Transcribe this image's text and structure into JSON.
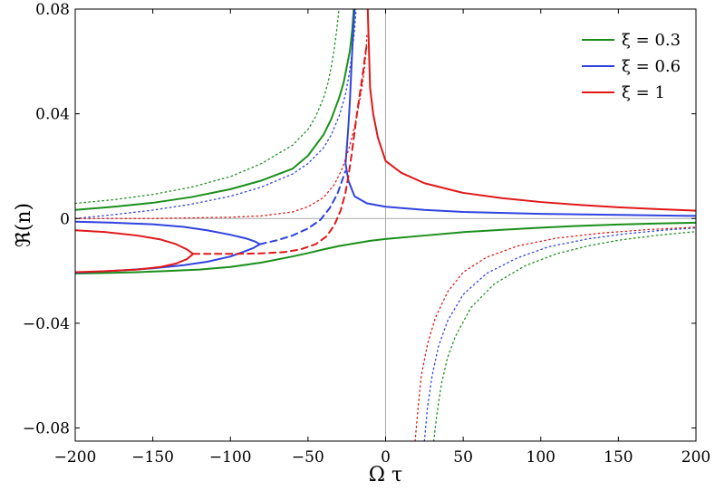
{
  "chart_data": {
    "type": "line",
    "title": "",
    "xlabel": "Ω τ",
    "ylabel": "ℜ(n)",
    "xlim": [
      -200,
      200
    ],
    "ylim": [
      -0.085,
      0.08
    ],
    "x_ticks": [
      -200,
      -150,
      -100,
      -50,
      0,
      50,
      100,
      150,
      200
    ],
    "x_tick_labels": [
      "−200",
      "−150",
      "−100",
      "−50",
      "0",
      "50",
      "100",
      "150",
      "200"
    ],
    "y_ticks": [
      -0.08,
      -0.04,
      0,
      0.04,
      0.08
    ],
    "y_tick_labels": [
      "−0.08",
      "−0.04",
      "0",
      "0.04",
      "0.08"
    ],
    "grid": false,
    "reference_lines": {
      "horizontal_y": 0,
      "vertical_x": 0,
      "color": "#aaaaaa"
    },
    "legend": {
      "position": "top-right",
      "entries": [
        {
          "label": "ξ = 0.3",
          "color": "#1a8f1a"
        },
        {
          "label": "ξ = 0.6",
          "color": "#2f43e0"
        },
        {
          "label": "ξ = 1",
          "color": "#e01818"
        }
      ]
    },
    "series": [
      {
        "legend_index": 0,
        "color": "#1a8f1a",
        "style": "solid",
        "points": [
          [
            -200,
            0.0033
          ],
          [
            -175,
            0.0045
          ],
          [
            -150,
            0.006
          ],
          [
            -125,
            0.0082
          ],
          [
            -100,
            0.0112
          ],
          [
            -80,
            0.0145
          ],
          [
            -60,
            0.019
          ],
          [
            -50,
            0.024
          ],
          [
            -40,
            0.032
          ],
          [
            -35,
            0.038
          ],
          [
            -30,
            0.046
          ],
          [
            -27,
            0.052
          ],
          [
            -25,
            0.058
          ],
          [
            -23,
            0.064
          ],
          [
            -21.5,
            0.072
          ],
          [
            -20.5,
            0.08
          ]
        ]
      },
      {
        "legend_index": 0,
        "color": "#1a8f1a",
        "style": "solid",
        "points": [
          [
            -200,
            -0.021
          ],
          [
            -180,
            -0.0208
          ],
          [
            -160,
            -0.0205
          ],
          [
            -140,
            -0.02
          ],
          [
            -120,
            -0.0195
          ],
          [
            -100,
            -0.0185
          ],
          [
            -80,
            -0.0168
          ],
          [
            -60,
            -0.0145
          ],
          [
            -50,
            -0.0132
          ],
          [
            -40,
            -0.0118
          ],
          [
            -30,
            -0.0105
          ],
          [
            -20,
            -0.0095
          ],
          [
            -10,
            -0.0085
          ],
          [
            0,
            -0.0078
          ],
          [
            25,
            -0.0065
          ],
          [
            50,
            -0.0052
          ],
          [
            75,
            -0.0043
          ],
          [
            100,
            -0.0035
          ],
          [
            125,
            -0.0028
          ],
          [
            150,
            -0.0023
          ],
          [
            175,
            -0.0019
          ],
          [
            200,
            -0.0016
          ]
        ]
      },
      {
        "legend_index": 0,
        "color": "#1a8f1a",
        "style": "dotted",
        "points": [
          [
            -200,
            0.0058
          ],
          [
            -175,
            0.0072
          ],
          [
            -150,
            0.0092
          ],
          [
            -125,
            0.012
          ],
          [
            -100,
            0.016
          ],
          [
            -80,
            0.021
          ],
          [
            -60,
            0.028
          ],
          [
            -50,
            0.034
          ],
          [
            -45,
            0.039
          ],
          [
            -40,
            0.046
          ],
          [
            -37,
            0.052
          ],
          [
            -35,
            0.058
          ],
          [
            -33,
            0.065
          ],
          [
            -31.5,
            0.072
          ],
          [
            -30,
            0.08
          ]
        ]
      },
      {
        "legend_index": 0,
        "color": "#1a8f1a",
        "style": "dotted",
        "points": [
          [
            31,
            -0.085
          ],
          [
            33,
            -0.075
          ],
          [
            36,
            -0.063
          ],
          [
            40,
            -0.053
          ],
          [
            45,
            -0.045
          ],
          [
            55,
            -0.034
          ],
          [
            70,
            -0.025
          ],
          [
            90,
            -0.018
          ],
          [
            110,
            -0.0135
          ],
          [
            130,
            -0.0105
          ],
          [
            150,
            -0.0083
          ],
          [
            175,
            -0.0064
          ],
          [
            200,
            -0.005
          ]
        ]
      },
      {
        "legend_index": 1,
        "color": "#2f43e0",
        "style": "solid",
        "points": [
          [
            -200,
            -0.0012
          ],
          [
            -175,
            -0.0016
          ],
          [
            -150,
            -0.0022
          ],
          [
            -130,
            -0.0032
          ],
          [
            -115,
            -0.0045
          ],
          [
            -100,
            -0.0062
          ],
          [
            -90,
            -0.0076
          ],
          [
            -84,
            -0.0088
          ],
          [
            -81,
            -0.0098
          ]
        ]
      },
      {
        "legend_index": 1,
        "color": "#2f43e0",
        "style": "solid",
        "points": [
          [
            -81,
            -0.0098
          ],
          [
            -85,
            -0.0112
          ],
          [
            -92,
            -0.0128
          ],
          [
            -100,
            -0.0145
          ],
          [
            -115,
            -0.0165
          ],
          [
            -130,
            -0.0178
          ],
          [
            -150,
            -0.019
          ],
          [
            -170,
            -0.0198
          ],
          [
            -200,
            -0.0207
          ]
        ]
      },
      {
        "legend_index": 1,
        "color": "#2f43e0",
        "style": "dashed",
        "points": [
          [
            -81,
            -0.0098
          ],
          [
            -70,
            -0.0083
          ],
          [
            -60,
            -0.0065
          ],
          [
            -50,
            -0.0038
          ],
          [
            -42,
            -0.0005
          ],
          [
            -36,
            0.004
          ],
          [
            -31,
            0.0095
          ],
          [
            -28,
            0.0145
          ],
          [
            -26,
            0.018
          ]
        ]
      },
      {
        "legend_index": 1,
        "color": "#2f43e0",
        "style": "solid",
        "points": [
          [
            -20,
            0.08
          ],
          [
            -21,
            0.07
          ],
          [
            -22,
            0.058
          ],
          [
            -23,
            0.045
          ],
          [
            -24,
            0.035
          ],
          [
            -25,
            0.027
          ],
          [
            -25.8,
            0.021
          ],
          [
            -24,
            0.0145
          ],
          [
            -20,
            0.0085
          ],
          [
            -12,
            0.0058
          ],
          [
            0,
            0.0045
          ],
          [
            25,
            0.0033
          ],
          [
            50,
            0.0025
          ],
          [
            100,
            0.0018
          ],
          [
            150,
            0.0014
          ],
          [
            200,
            0.001
          ]
        ]
      },
      {
        "legend_index": 1,
        "color": "#2f43e0",
        "style": "dotted",
        "points": [
          [
            -200,
            0.0
          ],
          [
            -175,
            0.0015
          ],
          [
            -150,
            0.0032
          ],
          [
            -125,
            0.0055
          ],
          [
            -100,
            0.0085
          ],
          [
            -80,
            0.012
          ],
          [
            -60,
            0.017
          ],
          [
            -50,
            0.021
          ],
          [
            -40,
            0.027
          ],
          [
            -35,
            0.032
          ],
          [
            -30,
            0.039
          ],
          [
            -26,
            0.047
          ],
          [
            -23.5,
            0.055
          ],
          [
            -21.5,
            0.064
          ],
          [
            -20,
            0.072
          ],
          [
            -19,
            0.08
          ]
        ]
      },
      {
        "legend_index": 1,
        "color": "#2f43e0",
        "style": "dotted",
        "points": [
          [
            25,
            -0.085
          ],
          [
            27,
            -0.072
          ],
          [
            30,
            -0.06
          ],
          [
            34,
            -0.049
          ],
          [
            40,
            -0.039
          ],
          [
            50,
            -0.029
          ],
          [
            65,
            -0.021
          ],
          [
            85,
            -0.015
          ],
          [
            105,
            -0.0108
          ],
          [
            130,
            -0.0078
          ],
          [
            155,
            -0.0058
          ],
          [
            180,
            -0.0044
          ],
          [
            200,
            -0.0036
          ]
        ]
      },
      {
        "legend_index": 2,
        "color": "#e01818",
        "style": "solid",
        "points": [
          [
            -200,
            -0.0045
          ],
          [
            -180,
            -0.0052
          ],
          [
            -160,
            -0.0065
          ],
          [
            -145,
            -0.008
          ],
          [
            -135,
            -0.0098
          ],
          [
            -128,
            -0.0118
          ],
          [
            -124,
            -0.0135
          ]
        ]
      },
      {
        "legend_index": 2,
        "color": "#e01818",
        "style": "solid",
        "points": [
          [
            -124,
            -0.0135
          ],
          [
            -128,
            -0.0155
          ],
          [
            -135,
            -0.0172
          ],
          [
            -145,
            -0.0185
          ],
          [
            -160,
            -0.0195
          ],
          [
            -180,
            -0.0201
          ],
          [
            -200,
            -0.0205
          ]
        ]
      },
      {
        "legend_index": 2,
        "color": "#e01818",
        "style": "dashed",
        "points": [
          [
            -124,
            -0.0135
          ],
          [
            -110,
            -0.0135
          ],
          [
            -95,
            -0.0135
          ],
          [
            -80,
            -0.0133
          ],
          [
            -65,
            -0.0128
          ],
          [
            -55,
            -0.0118
          ],
          [
            -45,
            -0.0098
          ],
          [
            -38,
            -0.0068
          ],
          [
            -33,
            -0.0025
          ],
          [
            -29,
            0.003
          ],
          [
            -26,
            0.0095
          ],
          [
            -24,
            0.016
          ],
          [
            -22,
            0.024
          ],
          [
            -20,
            0.033
          ],
          [
            -18,
            0.042
          ],
          [
            -16,
            0.05
          ],
          [
            -14.5,
            0.056
          ],
          [
            -13,
            0.063
          ],
          [
            -12,
            0.067
          ]
        ]
      },
      {
        "legend_index": 2,
        "color": "#e01818",
        "style": "solid",
        "points": [
          [
            -11.5,
            0.08
          ],
          [
            -11,
            0.07
          ],
          [
            -10.5,
            0.06
          ],
          [
            -10,
            0.05
          ],
          [
            -8,
            0.04
          ],
          [
            -5,
            0.031
          ],
          [
            0,
            0.022
          ],
          [
            10,
            0.0175
          ],
          [
            25,
            0.0135
          ],
          [
            50,
            0.0098
          ],
          [
            75,
            0.0078
          ],
          [
            100,
            0.0063
          ],
          [
            125,
            0.0052
          ],
          [
            150,
            0.0043
          ],
          [
            175,
            0.0036
          ],
          [
            200,
            0.003
          ]
        ]
      },
      {
        "legend_index": 2,
        "color": "#e01818",
        "style": "dotted",
        "points": [
          [
            19,
            -0.085
          ],
          [
            21,
            -0.072
          ],
          [
            23,
            -0.06
          ],
          [
            27,
            -0.048
          ],
          [
            32,
            -0.038
          ],
          [
            40,
            -0.028
          ],
          [
            50,
            -0.0205
          ],
          [
            65,
            -0.0148
          ],
          [
            85,
            -0.0105
          ],
          [
            110,
            -0.0075
          ],
          [
            140,
            -0.0055
          ],
          [
            170,
            -0.0042
          ],
          [
            200,
            -0.0033
          ]
        ]
      },
      {
        "legend_index": 2,
        "color": "#e01818",
        "style": "dotted",
        "points": [
          [
            -200,
            0.0
          ],
          [
            -150,
            0.0
          ],
          [
            -100,
            0.0005
          ],
          [
            -80,
            0.001
          ],
          [
            -60,
            0.0025
          ],
          [
            -50,
            0.0045
          ],
          [
            -40,
            0.008
          ],
          [
            -33,
            0.013
          ],
          [
            -28,
            0.019
          ],
          [
            -24,
            0.026
          ],
          [
            -20,
            0.035
          ],
          [
            -17,
            0.044
          ],
          [
            -15,
            0.051
          ],
          [
            -13.5,
            0.058
          ],
          [
            -12.5,
            0.065
          ],
          [
            -12,
            0.07
          ]
        ]
      }
    ]
  }
}
